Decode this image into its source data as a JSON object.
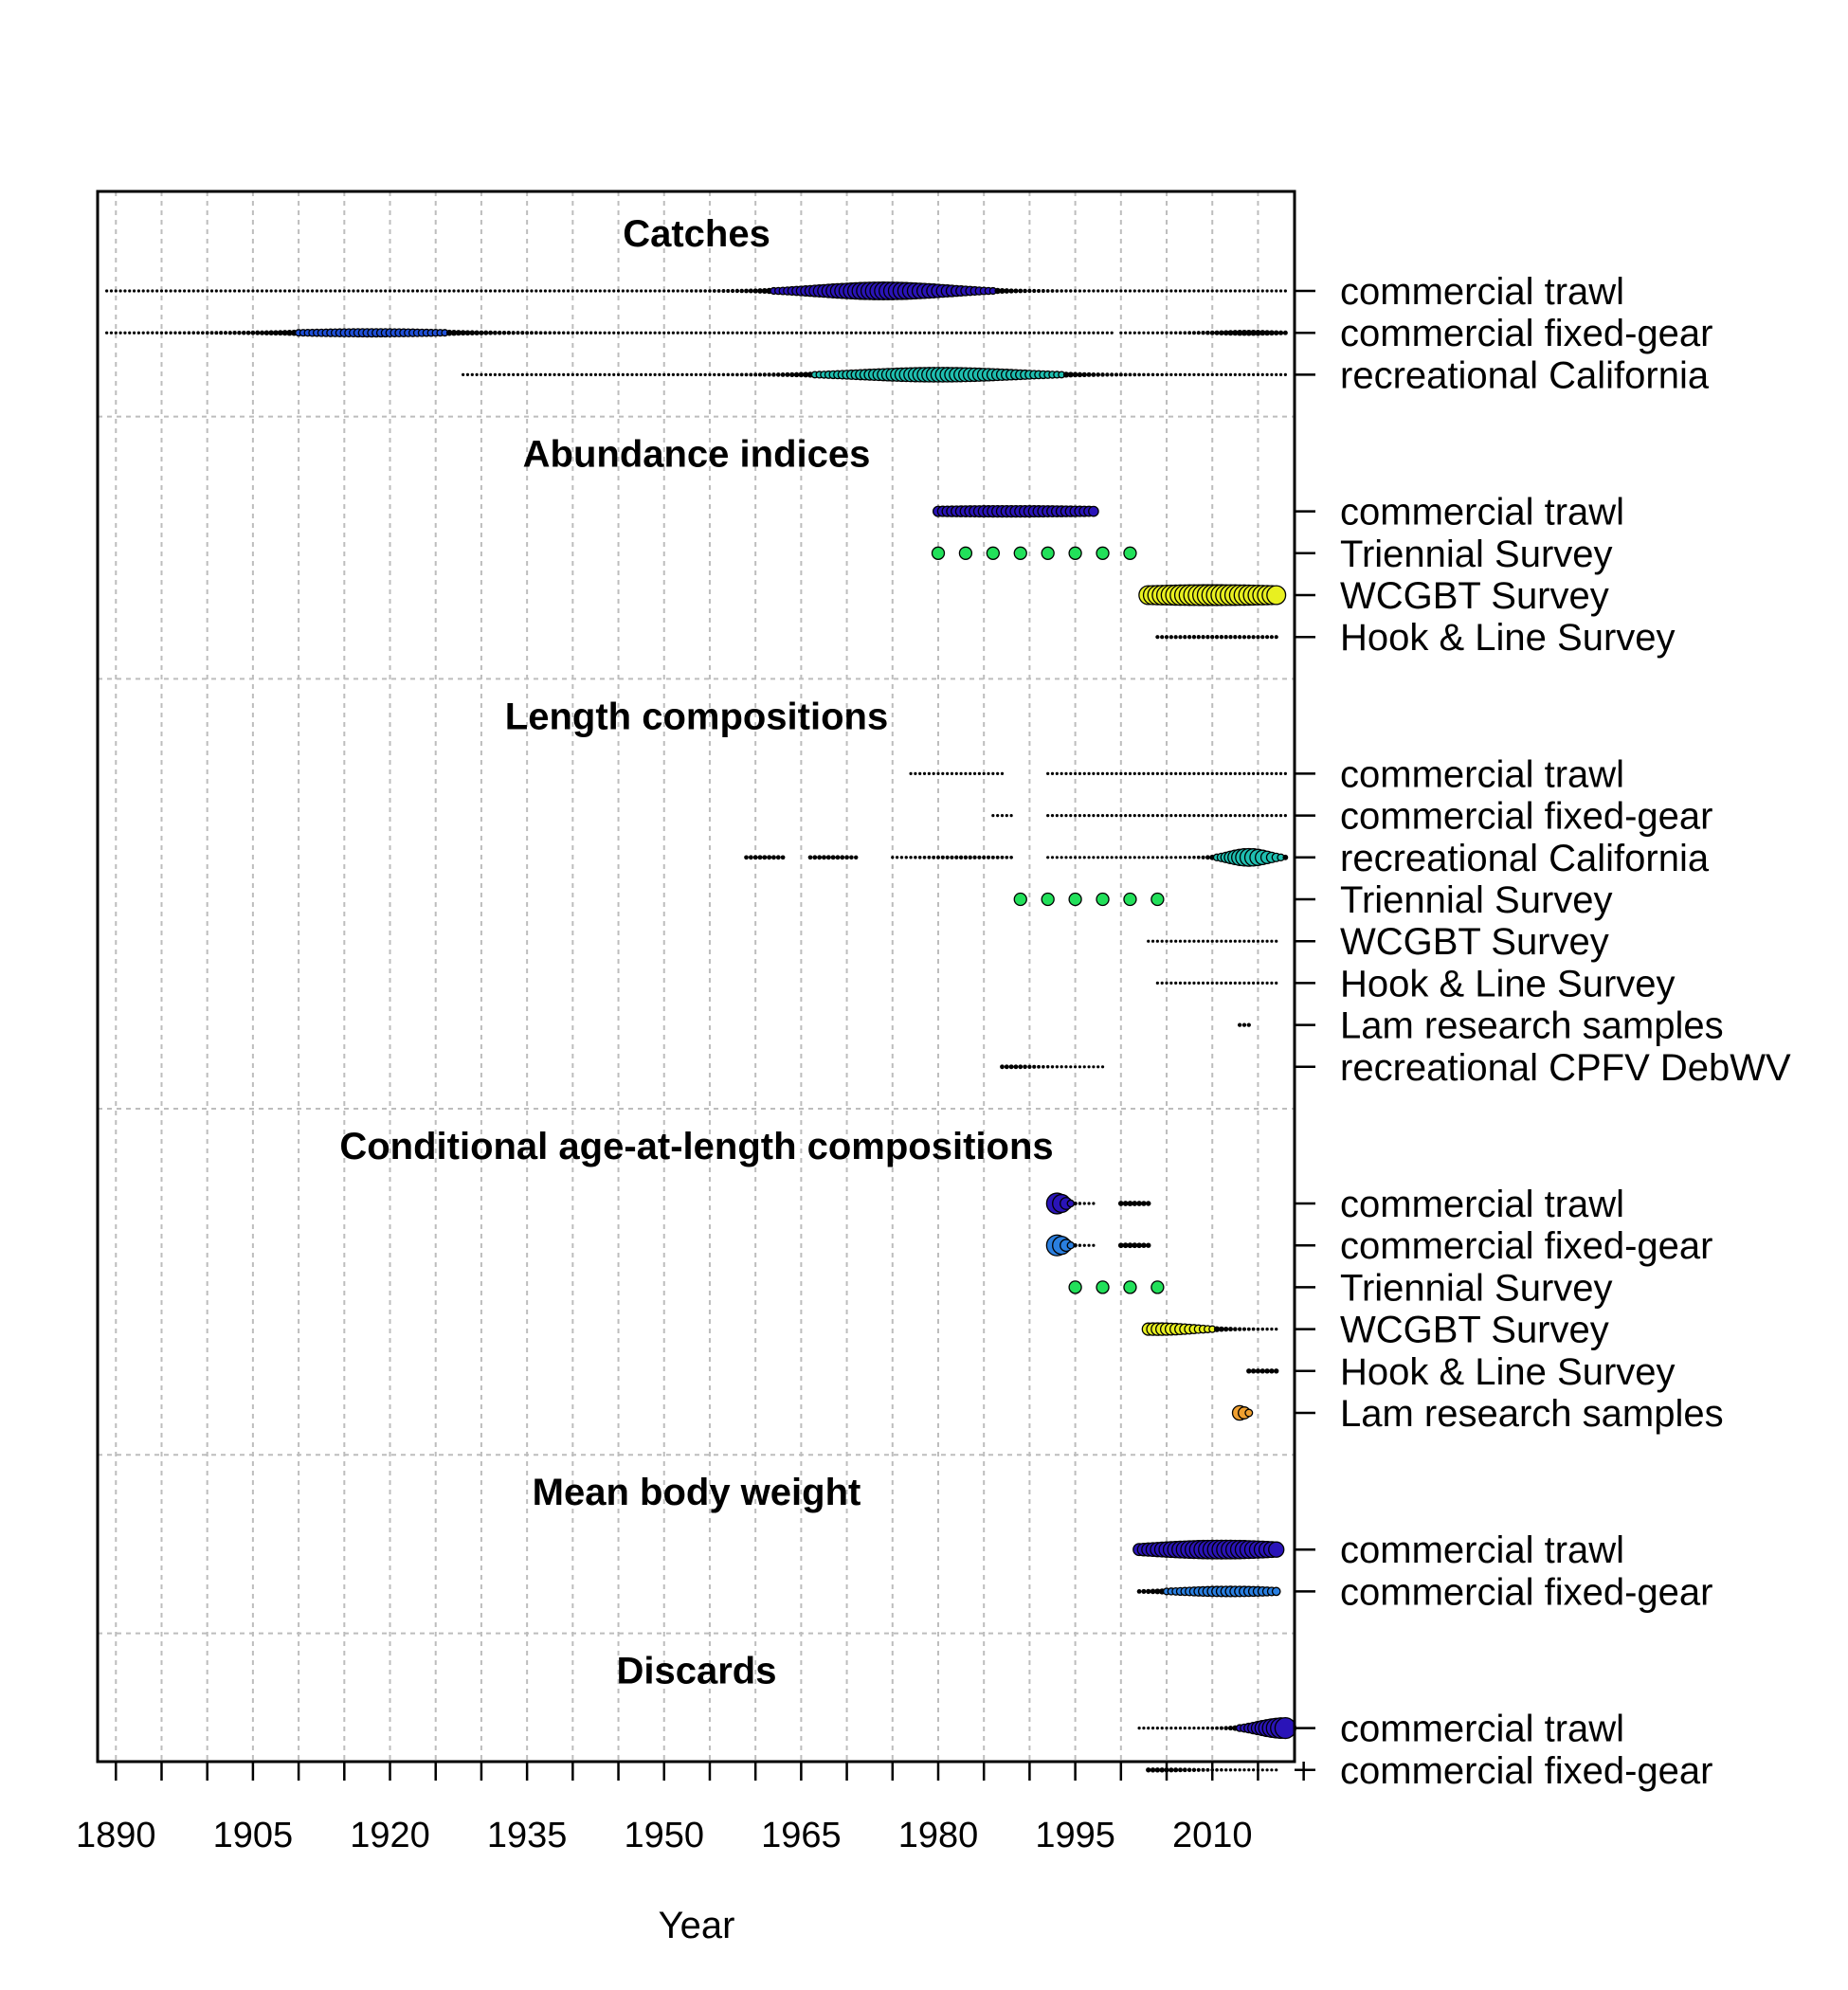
{
  "chart_data": {
    "type": "scatter",
    "subtype": "bubble-timeline",
    "xlabel": "Year",
    "xlim": [
      1888,
      2019
    ],
    "x_ticks_major": [
      1890,
      1905,
      1920,
      1935,
      1950,
      1965,
      1980,
      1995,
      2010
    ],
    "x_ticks_minor_step": 5,
    "grid": true,
    "sections": [
      {
        "title": "Catches",
        "rows": [
          {
            "label": "commercial trawl",
            "color": "#2a14b8",
            "ranges": [
              {
                "from": 1889,
                "to": 2018,
                "peak": 1974,
                "level": 0.7,
                "spread": 10
              }
            ]
          },
          {
            "label": "commercial fixed-gear",
            "color": "#1f4fd6",
            "ranges": [
              {
                "from": 1889,
                "to": 1999,
                "peak": 1918,
                "level": 0.25,
                "spread": 12
              },
              {
                "from": 2000,
                "to": 2018,
                "peak": 2014,
                "level": 0.15,
                "spread": 5
              }
            ]
          },
          {
            "label": "recreational California",
            "color": "#1fbfb0",
            "ranges": [
              {
                "from": 1928,
                "to": 2018,
                "peak": 1980,
                "level": 0.55,
                "spread": 12
              }
            ]
          }
        ]
      },
      {
        "title": "Abundance indices",
        "rows": [
          {
            "label": "commercial trawl",
            "color": "#2a14b8",
            "ranges": [
              {
                "from": 1980,
                "to": 1997,
                "peak": 1988,
                "level": 0.4,
                "spread": 20
              }
            ]
          },
          {
            "label": "Triennial Survey",
            "color": "#22e05a",
            "points": [
              1980,
              1983,
              1986,
              1989,
              1992,
              1995,
              1998,
              2001
            ]
          },
          {
            "label": "WCGBT Survey",
            "color": "#e8f020",
            "ranges": [
              {
                "from": 2003,
                "to": 2017,
                "peak": 2010,
                "level": 0.85,
                "spread": 20
              }
            ]
          },
          {
            "label": "Hook & Line Survey",
            "color": "#1a3a1a",
            "ranges": [
              {
                "from": 2004,
                "to": 2017,
                "peak": 2010,
                "level": 0.05,
                "spread": 20
              }
            ]
          }
        ]
      },
      {
        "title": "Length compositions",
        "rows": [
          {
            "label": "commercial trawl",
            "color": "#2a14b8",
            "ranges": [
              {
                "from": 1977,
                "to": 1987,
                "peak": 1982,
                "level": 0.0,
                "spread": 20
              },
              {
                "from": 1992,
                "to": 2018,
                "peak": 2005,
                "level": 0.0,
                "spread": 20
              }
            ]
          },
          {
            "label": "commercial fixed-gear",
            "color": "#1f4fd6",
            "ranges": [
              {
                "from": 1986,
                "to": 1988,
                "peak": 1987,
                "level": 0.0,
                "spread": 20
              },
              {
                "from": 1992,
                "to": 2018,
                "peak": 2005,
                "level": 0.0,
                "spread": 20
              }
            ]
          },
          {
            "label": "recreational California",
            "color": "#1fbfb0",
            "ranges": [
              {
                "from": 1959,
                "to": 1963,
                "peak": 1961,
                "level": 0.08,
                "spread": 5
              },
              {
                "from": 1966,
                "to": 1971,
                "peak": 1968,
                "level": 0.08,
                "spread": 5
              },
              {
                "from": 1975,
                "to": 1988,
                "peak": 1983,
                "level": 0.05,
                "spread": 5
              },
              {
                "from": 1992,
                "to": 2018,
                "peak": 2014,
                "level": 0.7,
                "spread": 3
              }
            ]
          },
          {
            "label": "Triennial Survey",
            "color": "#22e05a",
            "points": [
              1989,
              1992,
              1995,
              1998,
              2001,
              2004
            ]
          },
          {
            "label": "WCGBT Survey",
            "color": "#e8f020",
            "ranges": [
              {
                "from": 2003,
                "to": 2017,
                "peak": 2010,
                "level": 0.0,
                "spread": 20
              }
            ]
          },
          {
            "label": "Hook & Line Survey",
            "color": "#1a3a1a",
            "ranges": [
              {
                "from": 2004,
                "to": 2017,
                "peak": 2010,
                "level": 0.0,
                "spread": 20
              }
            ]
          },
          {
            "label": "Lam research samples",
            "color": "#f0a030",
            "ranges": [
              {
                "from": 2013,
                "to": 2014,
                "peak": 2013,
                "level": 0.05,
                "spread": 20
              }
            ]
          },
          {
            "label": "recreational CPFV DebWV",
            "color": "#1a1a1a",
            "ranges": [
              {
                "from": 1987,
                "to": 1998,
                "peak": 1988,
                "level": 0.08,
                "spread": 3
              }
            ]
          }
        ]
      },
      {
        "title": "Conditional age-at-length compositions",
        "rows": [
          {
            "label": "commercial trawl",
            "color": "#2a14b8",
            "ranges": [
              {
                "from": 1993,
                "to": 1997,
                "peak": 1993,
                "level": 0.85,
                "spread": 1.2
              },
              {
                "from": 2000,
                "to": 2003,
                "peak": 2001,
                "level": 0.12,
                "spread": 5
              }
            ]
          },
          {
            "label": "commercial fixed-gear",
            "color": "#2a7fe0",
            "ranges": [
              {
                "from": 1993,
                "to": 1997,
                "peak": 1993,
                "level": 0.85,
                "spread": 1.2
              },
              {
                "from": 2000,
                "to": 2003,
                "peak": 2001,
                "level": 0.12,
                "spread": 5
              }
            ]
          },
          {
            "label": "Triennial Survey",
            "color": "#22e05a",
            "points": [
              1995,
              1998,
              2001,
              2004
            ]
          },
          {
            "label": "WCGBT Survey",
            "color": "#e8f020",
            "ranges": [
              {
                "from": 2003,
                "to": 2017,
                "peak": 2004,
                "level": 0.45,
                "spread": 6
              }
            ]
          },
          {
            "label": "Hook & Line Survey",
            "color": "#1a3a1a",
            "ranges": [
              {
                "from": 2014,
                "to": 2017,
                "peak": 2015,
                "level": 0.1,
                "spread": 20
              }
            ]
          },
          {
            "label": "Lam research samples",
            "color": "#f0a030",
            "ranges": [
              {
                "from": 2013,
                "to": 2014,
                "peak": 2013,
                "level": 0.55,
                "spread": 1
              }
            ]
          }
        ]
      },
      {
        "title": "Mean body weight",
        "rows": [
          {
            "label": "commercial trawl",
            "color": "#2a14b8",
            "ranges": [
              {
                "from": 2002,
                "to": 2017,
                "peak": 2011,
                "level": 0.75,
                "spread": 12
              }
            ]
          },
          {
            "label": "commercial fixed-gear",
            "color": "#2a7fe0",
            "ranges": [
              {
                "from": 2002,
                "to": 2017,
                "peak": 2012,
                "level": 0.35,
                "spread": 8
              }
            ]
          }
        ]
      },
      {
        "title": "Discards",
        "rows": [
          {
            "label": "commercial trawl",
            "color": "#2a14b8",
            "ranges": [
              {
                "from": 2002,
                "to": 2018,
                "peak": 2018,
                "level": 0.85,
                "spread": 4
              }
            ]
          },
          {
            "label": "commercial fixed-gear",
            "color": "#2a7fe0",
            "ranges": [
              {
                "from": 2003,
                "to": 2017,
                "peak": 2004,
                "level": 0.1,
                "spread": 5
              }
            ]
          }
        ]
      }
    ]
  }
}
